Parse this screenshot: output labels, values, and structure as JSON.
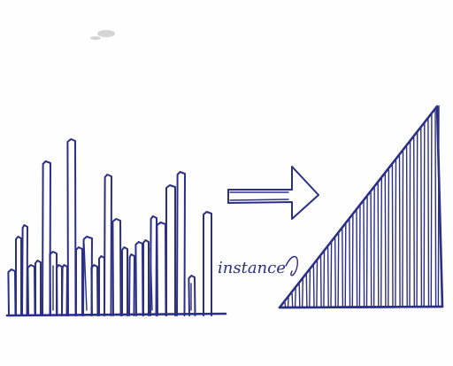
{
  "diagram": {
    "annotation_label": "instance",
    "left_histogram_bar_count": 25,
    "right_fill_line_count": 45,
    "ink_color": "#2c2f86"
  }
}
